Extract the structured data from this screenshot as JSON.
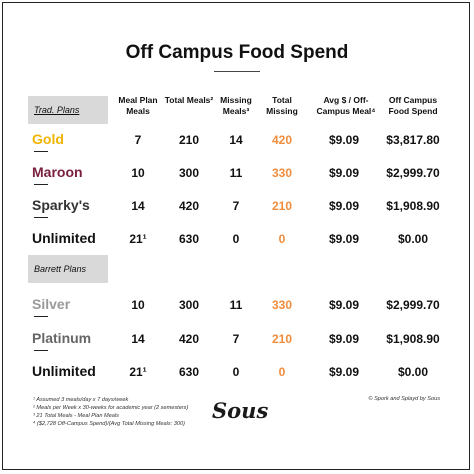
{
  "title": "Off Campus Food Spend",
  "headers": {
    "meal_plan_meals": "Meal Plan Meals",
    "total_meals": "Total Meals²",
    "missing_meals": "Missing Meals³",
    "total_missing": "Total Missing",
    "avg_per_meal": "Avg $ / Off-Campus Meal⁴",
    "off_campus_food_spend": "Off Campus Food Spend"
  },
  "sections": {
    "traditional": "Trad. Plans",
    "barrett": "Barrett Plans"
  },
  "colors": {
    "gold": "#f0b400",
    "maroon": "#7a1f3d",
    "sparky": "#333333",
    "silver": "#9a9a9a",
    "platinum": "#666666",
    "unlimited": "#111111",
    "orange_values": "#f08c3c",
    "section_bg": "#d9d9d9"
  },
  "rows": [
    {
      "name": "Gold",
      "meal_plan": "7",
      "total": "210",
      "missing": "14",
      "total_missing": "420",
      "avg": "$9.09",
      "spend": "$3,817.80"
    },
    {
      "name": "Maroon",
      "meal_plan": "10",
      "total": "300",
      "missing": "11",
      "total_missing": "330",
      "avg": "$9.09",
      "spend": "$2,999.70"
    },
    {
      "name": "Sparky's",
      "meal_plan": "14",
      "total": "420",
      "missing": "7",
      "total_missing": "210",
      "avg": "$9.09",
      "spend": "$1,908.90"
    },
    {
      "name": "Unlimited",
      "meal_plan": "21¹",
      "total": "630",
      "missing": "0",
      "total_missing": "0",
      "avg": "$9.09",
      "spend": "$0.00"
    },
    {
      "name": "Silver",
      "meal_plan": "10",
      "total": "300",
      "missing": "11",
      "total_missing": "330",
      "avg": "$9.09",
      "spend": "$2,999.70"
    },
    {
      "name": "Platinum",
      "meal_plan": "14",
      "total": "420",
      "missing": "7",
      "total_missing": "210",
      "avg": "$9.09",
      "spend": "$1,908.90"
    },
    {
      "name": "Unlimited",
      "meal_plan": "21¹",
      "total": "630",
      "missing": "0",
      "total_missing": "0",
      "avg": "$9.09",
      "spend": "$0.00"
    }
  ],
  "footnotes": [
    "¹ Assumed 3 meals/day x 7 days/week",
    "² Meals per Week x 30-weeks for academic year (2 semesters)",
    "³ 21 Total Meals - Meal Plan Meals",
    "⁴ ($2,728 Off-Campus Spend)/(Avg Total Missing Meals: 300)"
  ],
  "logo_text": "Sous",
  "credit": "© Spork and Splayd by Sous"
}
